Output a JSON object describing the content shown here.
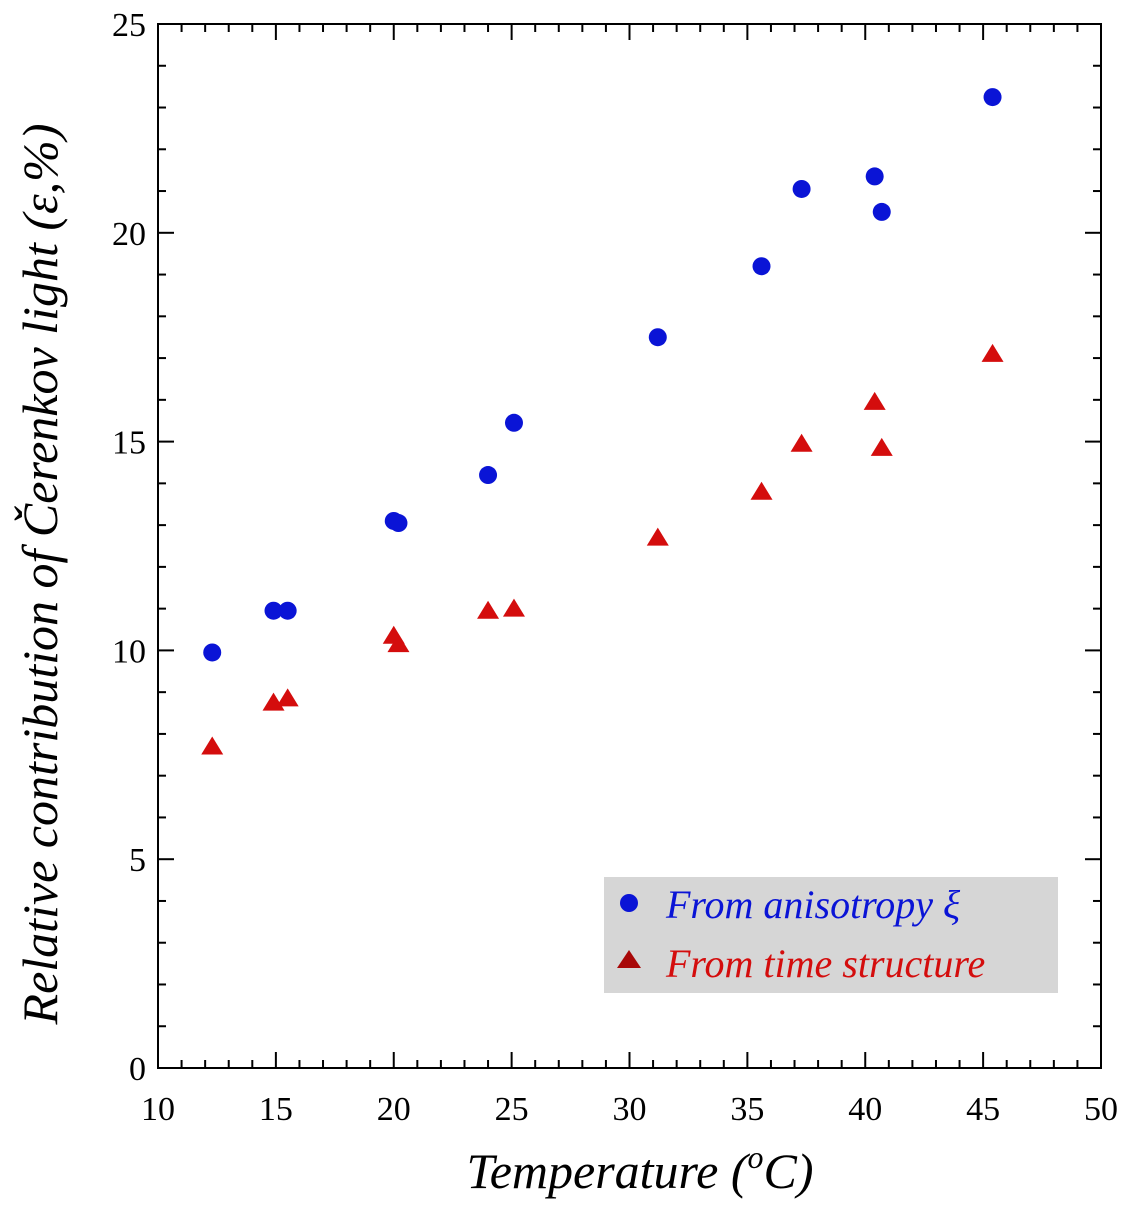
{
  "chart_data": {
    "type": "scatter",
    "xlabel": "Temperature (",
    "xlabel_sup": "o",
    "xlabel_end": "C)",
    "ylabel": "Relative contribution of Čerenkov light (ε,%)",
    "xlim": [
      10,
      50
    ],
    "ylim": [
      0,
      25
    ],
    "x_ticks": [
      10,
      15,
      20,
      25,
      30,
      35,
      40,
      45,
      50
    ],
    "y_ticks": [
      0,
      5,
      10,
      15,
      20,
      25
    ],
    "grid": false,
    "legend_position": "bottom-right",
    "series": [
      {
        "name": "From anisotropy ξ",
        "marker": "circle",
        "color": "#0a14d6",
        "points": [
          [
            12.3,
            9.95
          ],
          [
            14.9,
            10.95
          ],
          [
            15.5,
            10.95
          ],
          [
            20.0,
            13.1
          ],
          [
            20.2,
            13.05
          ],
          [
            24.0,
            14.2
          ],
          [
            25.1,
            15.45
          ],
          [
            31.2,
            17.5
          ],
          [
            35.6,
            19.2
          ],
          [
            37.3,
            21.05
          ],
          [
            40.4,
            21.35
          ],
          [
            40.7,
            20.5
          ],
          [
            45.4,
            23.25
          ]
        ]
      },
      {
        "name": "From time structure",
        "marker": "triangle",
        "color": "#d40d0d",
        "points": [
          [
            12.3,
            7.7
          ],
          [
            14.9,
            8.75
          ],
          [
            15.5,
            8.85
          ],
          [
            20.0,
            10.35
          ],
          [
            20.2,
            10.15
          ],
          [
            24.0,
            10.95
          ],
          [
            25.1,
            11.0
          ],
          [
            31.2,
            12.7
          ],
          [
            35.6,
            13.8
          ],
          [
            37.3,
            14.95
          ],
          [
            40.4,
            15.95
          ],
          [
            40.7,
            14.85
          ],
          [
            45.4,
            17.1
          ]
        ]
      }
    ]
  }
}
